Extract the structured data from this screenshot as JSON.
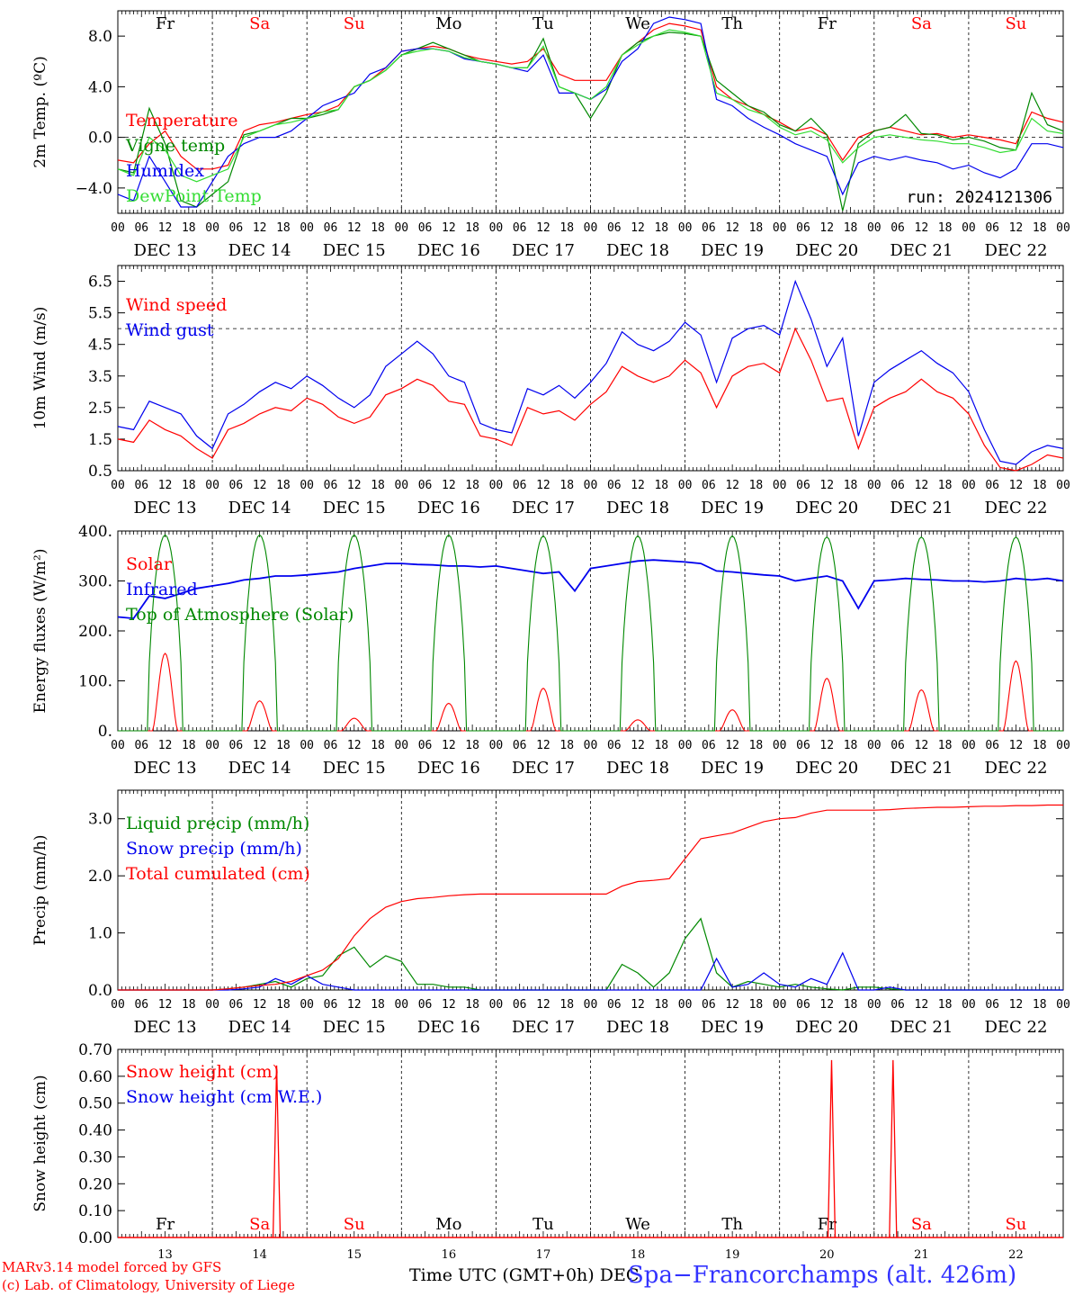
{
  "footer": {
    "credit_line1": "MARv3.14 model forced by GFS",
    "credit_line2": "(c) Lab. of Climatology, University of Liege",
    "x_title": "Time UTC (GMT+0h) DEC",
    "site": "Spa−Francorchamps (alt. 426m)"
  },
  "colors": {
    "red": "#ff0000",
    "green": "#008800",
    "blue": "#0000ee",
    "lightgreen": "#33dd33",
    "black": "#000000",
    "weekend": "#ff0000"
  },
  "chart_data": [
    {
      "type": "line",
      "ylabel": "2m Temp. (ºC)",
      "ylim": [
        -6.0,
        10.0
      ],
      "yticks": [
        "−4.0",
        "0.0",
        "4.0",
        "8.0"
      ],
      "ytick_values": [
        -4,
        0,
        4,
        8
      ],
      "dashed_y": 0,
      "day_labels": [
        "Fr",
        "Sa",
        "Su",
        "Mo",
        "Tu",
        "We",
        "Th",
        "Fr",
        "Sa",
        "Su"
      ],
      "weekend_days": [
        1,
        2,
        8,
        9
      ],
      "hour_ticks": [
        "00",
        "06",
        "12",
        "18"
      ],
      "date_labels": [
        "DEC 13",
        "DEC 14",
        "DEC 15",
        "DEC 16",
        "DEC 17",
        "DEC 18",
        "DEC 19",
        "DEC 20",
        "DEC 21",
        "DEC 22"
      ],
      "annotation": "run: 2024121306",
      "x_hours_step": 6,
      "series": [
        {
          "name": "Temperature",
          "color": "#ff0000",
          "values": [
            -1.8,
            -2.0,
            -0.5,
            0.5,
            -1.5,
            -2.5,
            -2.5,
            -2.2,
            0.5,
            1.0,
            1.2,
            1.5,
            1.8,
            2.0,
            2.5,
            4.0,
            4.5,
            5.5,
            6.8,
            7.0,
            7.2,
            7.0,
            6.5,
            6.2,
            6.0,
            5.8,
            6.0,
            7.0,
            5.0,
            4.5,
            4.5,
            4.5,
            6.5,
            7.5,
            8.5,
            9.0,
            8.8,
            8.5,
            4.0,
            3.0,
            2.5,
            1.8,
            1.2,
            0.5,
            0.8,
            0.2,
            -1.8,
            0.0,
            0.5,
            0.8,
            0.5,
            0.2,
            0.3,
            0.0,
            0.2,
            0.0,
            -0.2,
            -0.5,
            2.0,
            1.5,
            1.2
          ]
        },
        {
          "name": "Vigne temp",
          "color": "#008800",
          "values": [
            -2.5,
            -2.8,
            2.3,
            -0.5,
            -5.0,
            -5.5,
            -4.5,
            -3.5,
            0.2,
            0.5,
            1.0,
            1.5,
            1.5,
            1.8,
            2.2,
            4.0,
            4.5,
            5.3,
            6.5,
            7.0,
            7.5,
            7.0,
            6.5,
            6.0,
            5.8,
            5.5,
            5.5,
            7.8,
            4.0,
            3.5,
            1.5,
            3.5,
            6.5,
            7.5,
            8.0,
            8.3,
            8.2,
            8.0,
            4.5,
            3.5,
            2.5,
            2.0,
            1.0,
            0.5,
            1.5,
            0.2,
            -5.8,
            -0.5,
            0.5,
            0.8,
            1.8,
            0.3,
            0.2,
            -0.2,
            0.0,
            -0.3,
            -0.8,
            -1.0,
            3.5,
            1.0,
            0.5
          ]
        },
        {
          "name": "Humidex",
          "color": "#0000ee",
          "values": [
            -4.5,
            -5.0,
            -1.5,
            -3.5,
            -5.5,
            -5.5,
            -3.5,
            -1.5,
            -0.5,
            0.0,
            0.0,
            0.5,
            1.5,
            2.5,
            3.0,
            3.5,
            5.0,
            5.5,
            6.8,
            7.0,
            7.0,
            6.8,
            6.2,
            6.0,
            5.8,
            5.5,
            5.2,
            6.5,
            3.5,
            3.5,
            3.0,
            3.8,
            6.0,
            7.0,
            9.0,
            9.5,
            9.3,
            9.0,
            3.0,
            2.5,
            1.5,
            0.8,
            0.2,
            -0.5,
            -1.0,
            -1.5,
            -4.5,
            -2.0,
            -1.5,
            -1.8,
            -1.5,
            -1.8,
            -2.0,
            -2.5,
            -2.2,
            -2.8,
            -3.2,
            -2.5,
            -0.5,
            -0.5,
            -0.8
          ]
        },
        {
          "name": "DewPoint Temp",
          "color": "#33dd33",
          "values": [
            -2.5,
            -3.0,
            0.0,
            -1.0,
            -3.0,
            -3.5,
            -3.0,
            -2.5,
            0.0,
            0.5,
            1.0,
            1.2,
            1.5,
            2.0,
            2.2,
            4.0,
            4.5,
            5.3,
            6.5,
            6.8,
            7.0,
            6.8,
            6.3,
            6.0,
            5.8,
            5.5,
            5.5,
            7.2,
            4.0,
            3.5,
            3.0,
            4.0,
            6.5,
            7.3,
            8.0,
            8.5,
            8.3,
            8.0,
            3.5,
            3.0,
            2.2,
            1.8,
            0.8,
            0.2,
            0.5,
            -0.2,
            -2.0,
            -0.8,
            0.0,
            0.2,
            0.0,
            -0.2,
            -0.3,
            -0.5,
            -0.5,
            -0.8,
            -1.2,
            -1.0,
            1.5,
            0.5,
            0.3
          ]
        }
      ]
    },
    {
      "type": "line",
      "ylabel": "10m Wind (m/s)",
      "ylim": [
        0.5,
        7.0
      ],
      "yticks": [
        "0.5",
        "1.5",
        "2.5",
        "3.5",
        "4.5",
        "5.5",
        "6.5"
      ],
      "ytick_values": [
        0.5,
        1.5,
        2.5,
        3.5,
        4.5,
        5.5,
        6.5
      ],
      "dashed_y": 5.0,
      "hour_ticks": [
        "00",
        "06",
        "12",
        "18"
      ],
      "date_labels": [
        "DEC 13",
        "DEC 14",
        "DEC 15",
        "DEC 16",
        "DEC 17",
        "DEC 18",
        "DEC 19",
        "DEC 20",
        "DEC 21",
        "DEC 22"
      ],
      "series": [
        {
          "name": "Wind speed",
          "color": "#ff0000",
          "values": [
            1.5,
            1.4,
            2.1,
            1.8,
            1.6,
            1.2,
            0.9,
            1.8,
            2.0,
            2.3,
            2.5,
            2.4,
            2.8,
            2.6,
            2.2,
            2.0,
            2.2,
            2.9,
            3.1,
            3.4,
            3.2,
            2.7,
            2.6,
            1.6,
            1.5,
            1.3,
            2.5,
            2.3,
            2.4,
            2.1,
            2.6,
            3.0,
            3.8,
            3.5,
            3.3,
            3.5,
            4.0,
            3.6,
            2.5,
            3.5,
            3.8,
            3.9,
            3.6,
            5.0,
            4.0,
            2.7,
            2.8,
            1.2,
            2.5,
            2.8,
            3.0,
            3.4,
            3.0,
            2.8,
            2.3,
            1.3,
            0.6,
            0.5,
            0.7,
            1.0,
            0.9
          ]
        },
        {
          "name": "Wind gust",
          "color": "#0000ee",
          "values": [
            1.9,
            1.8,
            2.7,
            2.5,
            2.3,
            1.6,
            1.2,
            2.3,
            2.6,
            3.0,
            3.3,
            3.1,
            3.5,
            3.2,
            2.8,
            2.5,
            2.9,
            3.8,
            4.2,
            4.6,
            4.2,
            3.5,
            3.3,
            2.0,
            1.8,
            1.7,
            3.1,
            2.9,
            3.2,
            2.8,
            3.3,
            3.9,
            4.9,
            4.5,
            4.3,
            4.6,
            5.2,
            4.8,
            3.3,
            4.7,
            5.0,
            5.1,
            4.8,
            6.5,
            5.3,
            3.8,
            4.7,
            1.6,
            3.3,
            3.7,
            4.0,
            4.3,
            3.9,
            3.6,
            3.0,
            1.8,
            0.8,
            0.7,
            1.1,
            1.3,
            1.2
          ]
        }
      ]
    },
    {
      "type": "line",
      "ylabel": "Energy fluxes (W/m²)",
      "ylim": [
        0,
        400
      ],
      "yticks": [
        "0.",
        "100.",
        "200.",
        "300.",
        "400."
      ],
      "ytick_values": [
        0,
        100,
        200,
        300,
        400
      ],
      "hour_ticks": [
        "00",
        "06",
        "12",
        "18"
      ],
      "date_labels": [
        "DEC 13",
        "DEC 14",
        "DEC 15",
        "DEC 16",
        "DEC 17",
        "DEC 18",
        "DEC 19",
        "DEC 20",
        "DEC 21",
        "DEC 22"
      ],
      "series": [
        {
          "name": "Solar",
          "color": "#ff0000",
          "day_peaks": [
            155,
            60,
            25,
            55,
            85,
            22,
            42,
            105,
            82,
            140
          ]
        },
        {
          "name": "Infrared",
          "color": "#0000ee",
          "values": [
            228,
            225,
            270,
            265,
            275,
            285,
            290,
            295,
            302,
            305,
            310,
            310,
            312,
            315,
            318,
            325,
            330,
            335,
            335,
            333,
            332,
            330,
            330,
            328,
            330,
            325,
            320,
            315,
            318,
            280,
            325,
            330,
            335,
            340,
            342,
            340,
            338,
            335,
            320,
            318,
            315,
            312,
            310,
            300,
            305,
            310,
            300,
            245,
            300,
            302,
            305,
            303,
            302,
            300,
            300,
            298,
            300,
            305,
            302,
            305,
            300
          ]
        },
        {
          "name": "Top of Atmosphere (Solar)",
          "color": "#008800",
          "day_peaks": [
            392,
            392,
            392,
            392,
            390,
            390,
            390,
            388,
            388,
            388
          ]
        }
      ]
    },
    {
      "type": "line",
      "ylabel": "Precip (mm/h)",
      "ylim": [
        0.0,
        3.5
      ],
      "yticks": [
        "0.0",
        "1.0",
        "2.0",
        "3.0"
      ],
      "ytick_values": [
        0.0,
        1.0,
        2.0,
        3.0
      ],
      "hour_ticks": [
        "00",
        "06",
        "12",
        "18"
      ],
      "date_labels": [
        "DEC 13",
        "DEC 14",
        "DEC 15",
        "DEC 16",
        "DEC 17",
        "DEC 18",
        "DEC 19",
        "DEC 20",
        "DEC 21",
        "DEC 22"
      ],
      "series": [
        {
          "name": "Liquid precip (mm/h)",
          "color": "#008800",
          "values": [
            0,
            0,
            0,
            0,
            0,
            0,
            0,
            0.02,
            0.05,
            0.1,
            0.15,
            0.05,
            0.2,
            0.25,
            0.6,
            0.75,
            0.4,
            0.6,
            0.5,
            0.1,
            0.1,
            0.05,
            0.05,
            0,
            0,
            0,
            0,
            0,
            0,
            0,
            0,
            0,
            0.45,
            0.3,
            0.05,
            0.3,
            0.9,
            1.25,
            0.3,
            0.05,
            0.15,
            0.1,
            0.05,
            0.1,
            0.05,
            0.02,
            0,
            0.05,
            0.05,
            0.02,
            0,
            0,
            0,
            0,
            0,
            0,
            0,
            0,
            0,
            0,
            0
          ]
        },
        {
          "name": "Snow precip (mm/h)",
          "color": "#0000ee",
          "values": [
            0,
            0,
            0,
            0,
            0,
            0,
            0,
            0,
            0.02,
            0.05,
            0.2,
            0.1,
            0.25,
            0.1,
            0.05,
            0,
            0,
            0,
            0,
            0,
            0,
            0,
            0,
            0,
            0,
            0,
            0,
            0,
            0,
            0,
            0,
            0,
            0,
            0,
            0,
            0,
            0,
            0,
            0.55,
            0.05,
            0.1,
            0.3,
            0.1,
            0.05,
            0.2,
            0.1,
            0.65,
            0,
            0,
            0.05,
            0,
            0,
            0,
            0,
            0,
            0,
            0,
            0,
            0,
            0,
            0
          ]
        },
        {
          "name": "Total cumulated (cm)",
          "color": "#ff0000",
          "values": [
            0,
            0,
            0,
            0,
            0,
            0,
            0,
            0.02,
            0.05,
            0.08,
            0.1,
            0.15,
            0.25,
            0.35,
            0.55,
            0.95,
            1.25,
            1.45,
            1.55,
            1.6,
            1.62,
            1.65,
            1.67,
            1.68,
            1.68,
            1.68,
            1.68,
            1.68,
            1.68,
            1.68,
            1.68,
            1.68,
            1.82,
            1.9,
            1.92,
            1.95,
            2.3,
            2.65,
            2.7,
            2.75,
            2.85,
            2.95,
            3.0,
            3.02,
            3.1,
            3.15,
            3.15,
            3.15,
            3.15,
            3.16,
            3.18,
            3.19,
            3.2,
            3.2,
            3.21,
            3.22,
            3.22,
            3.23,
            3.23,
            3.24,
            3.24
          ]
        }
      ]
    },
    {
      "type": "line",
      "ylabel": "Snow height (cm)",
      "ylim": [
        0.0,
        0.7
      ],
      "yticks": [
        "0.00",
        "0.10",
        "0.20",
        "0.30",
        "0.40",
        "0.50",
        "0.60",
        "0.70"
      ],
      "ytick_values": [
        0.0,
        0.1,
        0.2,
        0.3,
        0.4,
        0.5,
        0.6,
        0.7
      ],
      "day_labels": [
        "Fr",
        "Sa",
        "Su",
        "Mo",
        "Tu",
        "We",
        "Th",
        "Fr",
        "Sa",
        "Su"
      ],
      "weekend_days": [
        1,
        2,
        8,
        9
      ],
      "date_numbers": [
        "13",
        "14",
        "15",
        "16",
        "17",
        "18",
        "19",
        "20",
        "21",
        "22"
      ],
      "series": [
        {
          "name": "Snow height (cm)",
          "color": "#ff0000",
          "spikes": [
            {
              "day": 1.68,
              "value": 0.64
            },
            {
              "day": 7.55,
              "value": 0.66
            },
            {
              "day": 8.2,
              "value": 0.66
            }
          ]
        },
        {
          "name": "Snow height (cm W.E.)",
          "color": "#0000ee",
          "spikes": []
        }
      ]
    }
  ]
}
